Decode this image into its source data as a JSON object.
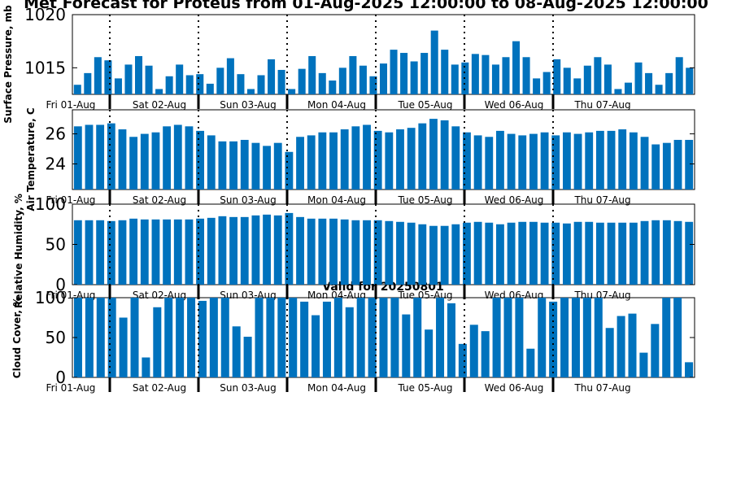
{
  "chart_data": {
    "title": "Met Forecast for Proteus from 01-Aug-2025 12:00:00 to 08-Aug-2025 12:00:00",
    "subtitle": "Valid for 20250801",
    "bar_color": "#0072bd",
    "day_labels": [
      "Fri 01-Aug",
      "Sat 02-Aug",
      "Sun 03-Aug",
      "Mon 04-Aug",
      "Tue 05-Aug",
      "Wed 06-Aug",
      "Thu 07-Aug"
    ],
    "panels": [
      {
        "type": "bar",
        "ylabel": "Surface Pressure, mb",
        "ylim": [
          1012.5,
          1020
        ],
        "yticks": [
          "1015",
          "1020"
        ],
        "values": [
          1013.4,
          1014.5,
          1016.0,
          1015.7,
          1014.0,
          1015.3,
          1016.1,
          1015.2,
          1013.0,
          1014.2,
          1015.3,
          1014.3,
          1014.4,
          1013.5,
          1015.0,
          1015.9,
          1014.4,
          1013.0,
          1014.3,
          1015.8,
          1014.8,
          1013.0,
          1014.9,
          1016.1,
          1014.5,
          1013.8,
          1015.0,
          1016.1,
          1015.2,
          1014.2,
          1015.4,
          1016.7,
          1016.4,
          1015.6,
          1016.4,
          1018.5,
          1016.7,
          1015.3,
          1015.5,
          1016.3,
          1016.2,
          1015.3,
          1016.0,
          1017.5,
          1016.0,
          1014.0,
          1014.6,
          1015.8,
          1015.0,
          1014.0,
          1015.2,
          1016.0,
          1015.3,
          1013.0,
          1013.6,
          1015.5,
          1014.5,
          1013.4,
          1014.5,
          1016.0,
          1015.0
        ]
      },
      {
        "type": "bar",
        "ylabel": "Air Temperature, C",
        "ylim": [
          22.3,
          27.6
        ],
        "yticks": [
          "24",
          "26"
        ],
        "values": [
          26.5,
          26.6,
          26.6,
          26.7,
          26.3,
          25.8,
          26.0,
          26.1,
          26.5,
          26.6,
          26.5,
          26.2,
          25.9,
          25.5,
          25.5,
          25.6,
          25.4,
          25.2,
          25.4,
          24.8,
          25.8,
          25.9,
          26.1,
          26.1,
          26.3,
          26.5,
          26.6,
          26.2,
          26.1,
          26.3,
          26.4,
          26.7,
          27.0,
          26.9,
          26.5,
          26.1,
          25.9,
          25.8,
          26.2,
          26.0,
          25.9,
          26.0,
          26.1,
          25.9,
          26.1,
          26.0,
          26.1,
          26.2,
          26.2,
          26.3,
          26.1,
          25.8,
          25.3,
          25.4,
          25.6,
          25.6
        ]
      },
      {
        "type": "bar",
        "ylabel": "Relative Humidity, %",
        "ylim": [
          0,
          100
        ],
        "yticks": [
          "0",
          "50",
          "100"
        ],
        "values": [
          80,
          80,
          80,
          79,
          80,
          82,
          81,
          81,
          81,
          81,
          81,
          82,
          83,
          85,
          84,
          84,
          86,
          87,
          86,
          89,
          84,
          82,
          82,
          82,
          81,
          80,
          80,
          80,
          79,
          78,
          77,
          75,
          73,
          73,
          75,
          77,
          78,
          77,
          75,
          77,
          78,
          78,
          77,
          77,
          76,
          78,
          78,
          77,
          77,
          77,
          77,
          79,
          80,
          80,
          79,
          78
        ]
      },
      {
        "type": "bar",
        "ylabel": "Cloud Cover, %",
        "ylim": [
          0,
          100
        ],
        "yticks": [
          "0",
          "50",
          "100"
        ],
        "values": [
          100,
          100,
          100,
          100,
          75,
          100,
          25,
          88,
          100,
          100,
          100,
          96,
          100,
          100,
          64,
          51,
          100,
          100,
          100,
          100,
          95,
          78,
          95,
          100,
          88,
          100,
          100,
          100,
          100,
          79,
          100,
          60,
          100,
          93,
          42,
          66,
          58,
          100,
          100,
          100,
          36,
          100,
          95,
          100,
          100,
          100,
          100,
          62,
          77,
          80,
          31,
          67,
          100,
          100,
          19
        ]
      }
    ]
  }
}
